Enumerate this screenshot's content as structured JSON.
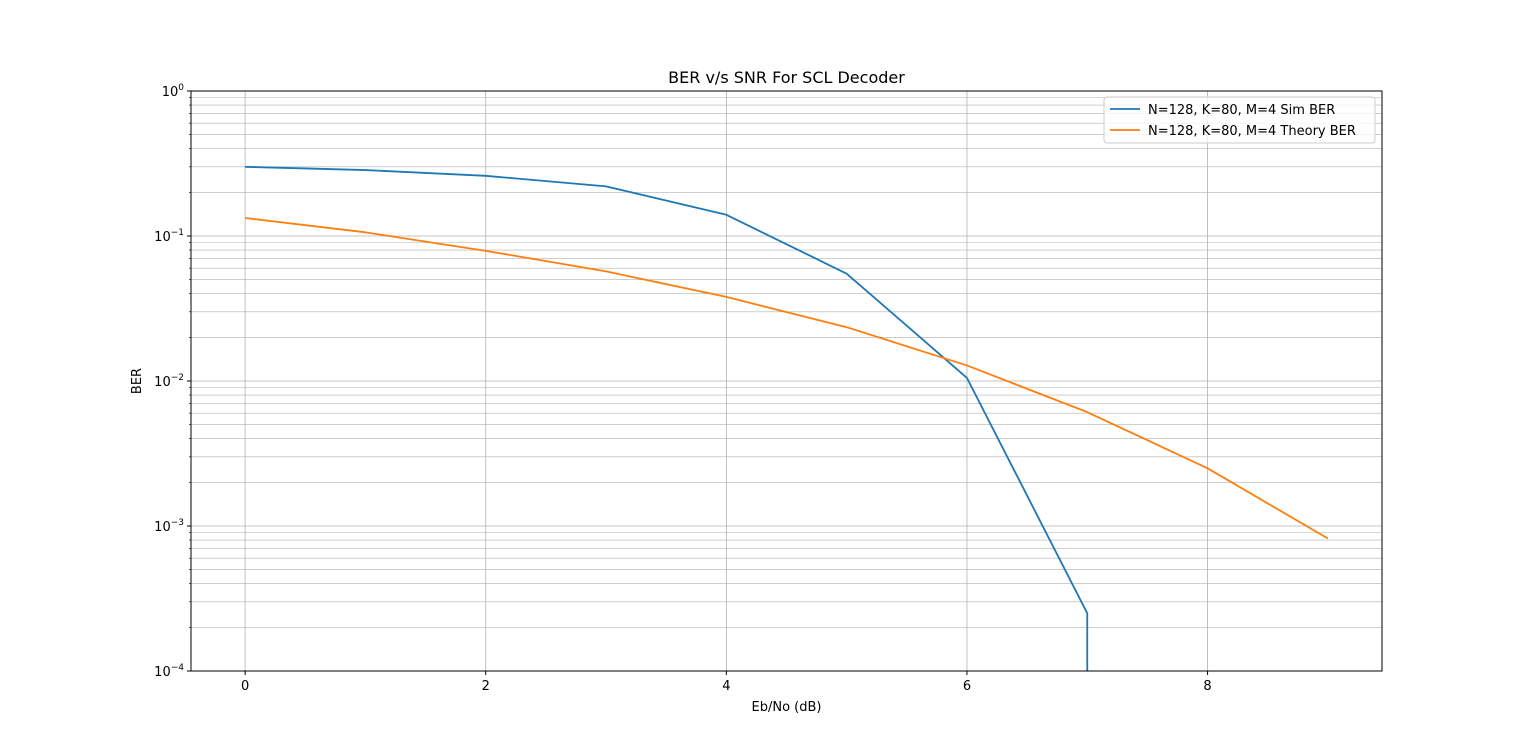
{
  "chart_data": {
    "type": "line",
    "title": "BER v/s SNR For SCL Decoder",
    "xlabel": "Eb/No (dB)",
    "ylabel": "BER",
    "xlim": [
      -0.45,
      9.45
    ],
    "ylim": [
      0.0001,
      1
    ],
    "yscale": "log",
    "grid": true,
    "grid_minor": true,
    "legend_position": "top-right",
    "x_ticks": [
      0,
      2,
      4,
      6,
      8
    ],
    "y_ticks": [
      {
        "base": "10",
        "exp": "−4",
        "value": 0.0001
      },
      {
        "base": "10",
        "exp": "−3",
        "value": 0.001
      },
      {
        "base": "10",
        "exp": "−2",
        "value": 0.01
      },
      {
        "base": "10",
        "exp": "−1",
        "value": 0.1
      },
      {
        "base": "10",
        "exp": "0",
        "value": 1
      }
    ],
    "series": [
      {
        "name": "N=128, K=80, M=4 Sim BER",
        "color": "#1f77b4",
        "x": [
          0,
          1,
          2,
          3,
          4,
          5,
          6,
          7,
          7
        ],
        "y": [
          0.3,
          0.285,
          0.26,
          0.22,
          0.14,
          0.055,
          0.0105,
          0.00025,
          0.0001
        ]
      },
      {
        "name": "N=128, K=80, M=4 Theory BER",
        "color": "#ff7f0e",
        "x": [
          0,
          1,
          2,
          3,
          4,
          5,
          6,
          7,
          8,
          9
        ],
        "y": [
          0.133,
          0.106,
          0.079,
          0.057,
          0.038,
          0.0235,
          0.0128,
          0.0061,
          0.0025,
          0.00082
        ]
      }
    ]
  }
}
